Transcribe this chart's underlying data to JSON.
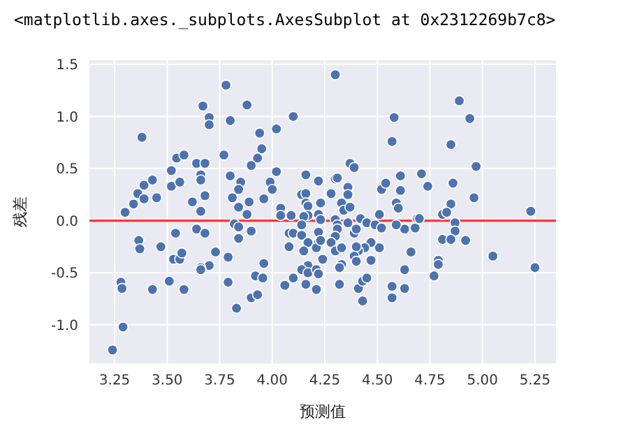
{
  "chart_data": {
    "type": "scatter",
    "xlabel": "预测值",
    "ylabel": "残差",
    "annotations": [
      "<matplotlib.axes._subplots.AxesSubplot at 0x2312269b7c8>"
    ],
    "xlim": [
      3.13,
      5.35
    ],
    "ylim": [
      -1.37,
      1.54
    ],
    "xticks": [
      {
        "value": 3.25,
        "label": "3.25"
      },
      {
        "value": 3.5,
        "label": "3.50"
      },
      {
        "value": 3.75,
        "label": "3.75"
      },
      {
        "value": 4.0,
        "label": "4.00"
      },
      {
        "value": 4.25,
        "label": "4.25"
      },
      {
        "value": 4.5,
        "label": "4.50"
      },
      {
        "value": 4.75,
        "label": "4.75"
      },
      {
        "value": 5.0,
        "label": "5.00"
      },
      {
        "value": 5.25,
        "label": "5.25"
      }
    ],
    "yticks": [
      {
        "value": -1.0,
        "label": "-1.0"
      },
      {
        "value": -0.5,
        "label": "-0.5"
      },
      {
        "value": 0.0,
        "label": "0.0"
      },
      {
        "value": 0.5,
        "label": "0.5"
      },
      {
        "value": 1.0,
        "label": "1.0"
      },
      {
        "value": 1.5,
        "label": "1.5"
      }
    ],
    "grid": true,
    "marker": "circle",
    "ref_lines": [
      {
        "axis": "y",
        "value": 0,
        "color": "#ff2a2a"
      }
    ],
    "series": [
      {
        "color": "#4c72b0",
        "x": [
          3.24,
          3.29,
          3.28,
          3.285,
          3.3,
          3.34,
          3.36,
          3.39,
          3.39,
          3.43,
          3.45,
          3.38,
          3.365,
          3.37,
          3.47,
          3.43,
          3.51,
          3.58,
          3.53,
          3.56,
          3.57,
          3.54,
          3.52,
          3.52,
          3.56,
          3.545,
          3.58,
          3.62,
          3.64,
          3.68,
          3.66,
          3.66,
          3.68,
          3.66,
          3.64,
          3.68,
          3.67,
          3.7,
          3.7,
          3.78,
          3.8,
          3.88,
          3.94,
          3.77,
          3.95,
          3.93,
          3.9,
          3.8,
          3.85,
          3.84,
          3.81,
          3.84,
          3.89,
          3.88,
          3.96,
          3.99,
          4.0,
          4.02,
          4.02,
          3.82,
          3.84,
          3.84,
          3.9,
          3.73,
          3.79,
          3.7,
          3.66,
          3.66,
          3.79,
          3.83,
          3.9,
          3.93,
          3.92,
          3.955,
          3.96,
          4.3,
          4.1,
          4.58,
          4.57,
          4.37,
          4.39,
          4.16,
          4.22,
          4.3,
          4.31,
          4.14,
          4.16,
          4.36,
          4.36,
          4.28,
          4.33,
          4.34,
          4.37,
          4.04,
          4.04,
          4.09,
          4.16,
          4.17,
          4.17,
          4.23,
          4.22,
          4.23,
          4.15,
          4.14,
          4.08,
          4.1,
          4.14,
          4.17,
          4.22,
          4.22,
          4.21,
          4.15,
          4.08,
          4.23,
          4.24,
          4.3,
          4.31,
          4.31,
          4.3,
          4.28,
          4.3,
          4.33,
          4.36,
          4.39,
          4.4,
          4.42,
          4.45,
          4.49,
          4.51,
          4.52,
          4.47,
          4.44,
          4.41,
          4.4,
          4.39,
          4.4,
          4.47,
          4.51,
          4.33,
          4.32,
          4.17,
          4.14,
          4.17,
          4.21,
          4.22,
          4.1,
          4.06,
          4.16,
          4.21,
          4.32,
          4.41,
          4.43,
          4.45,
          4.43,
          4.57,
          4.57,
          4.63,
          4.63,
          4.66,
          4.63,
          4.59,
          4.68,
          4.52,
          4.54,
          4.61,
          4.61,
          4.59,
          4.6,
          4.69,
          4.89,
          4.94,
          4.85,
          4.97,
          4.71,
          4.74,
          4.86,
          4.96,
          4.85,
          4.81,
          4.83,
          4.7,
          4.87,
          4.87,
          4.81,
          4.85,
          4.92,
          4.79,
          4.79,
          4.77,
          5.05,
          5.23,
          5.25
        ],
        "values": [
          -1.24,
          -1.02,
          -0.59,
          -0.65,
          0.08,
          0.16,
          0.26,
          0.34,
          0.21,
          0.39,
          0.22,
          0.8,
          -0.19,
          -0.27,
          -0.25,
          -0.66,
          -0.58,
          -0.66,
          -0.37,
          -0.37,
          -0.31,
          -0.12,
          0.33,
          0.48,
          0.37,
          0.6,
          0.63,
          0.18,
          0.55,
          0.55,
          0.44,
          0.39,
          0.24,
          0.09,
          -0.08,
          -0.12,
          1.1,
          0.99,
          0.92,
          1.3,
          0.96,
          1.11,
          0.84,
          0.63,
          0.69,
          0.6,
          0.53,
          0.43,
          0.37,
          0.3,
          0.22,
          0.13,
          0.18,
          0.06,
          0.21,
          0.37,
          0.3,
          0.88,
          0.47,
          -0.03,
          -0.06,
          -0.17,
          -0.1,
          -0.3,
          -0.35,
          -0.43,
          -0.45,
          -0.47,
          -0.59,
          -0.84,
          -0.74,
          -0.71,
          -0.53,
          -0.55,
          -0.41,
          1.4,
          1.0,
          0.99,
          0.76,
          0.55,
          0.51,
          0.44,
          0.38,
          0.4,
          0.41,
          0.25,
          0.26,
          0.32,
          0.25,
          0.26,
          0.17,
          0.1,
          0.13,
          0.12,
          0.05,
          0.05,
          0.17,
          0.14,
          0.05,
          0.17,
          0.06,
          0.01,
          0.04,
          -0.04,
          -0.12,
          -0.12,
          -0.14,
          -0.21,
          -0.21,
          -0.11,
          -0.26,
          -0.29,
          -0.25,
          -0.19,
          -0.37,
          0.01,
          -0.04,
          -0.08,
          -0.15,
          -0.21,
          -0.29,
          -0.26,
          -0.02,
          -0.12,
          -0.08,
          0.02,
          -0.02,
          -0.04,
          0.06,
          -0.07,
          -0.21,
          -0.26,
          -0.29,
          -0.25,
          -0.34,
          -0.39,
          -0.38,
          -0.26,
          -0.42,
          -0.45,
          -0.43,
          -0.47,
          -0.5,
          -0.47,
          -0.51,
          -0.55,
          -0.62,
          -0.61,
          -0.66,
          -0.61,
          -0.65,
          -0.58,
          -0.55,
          -0.77,
          -0.63,
          -0.74,
          -0.65,
          -0.47,
          -0.3,
          -0.08,
          -0.04,
          -0.07,
          0.3,
          0.36,
          0.43,
          0.29,
          0.17,
          0.12,
          0.02,
          1.15,
          0.98,
          0.73,
          0.52,
          0.45,
          0.33,
          0.36,
          0.22,
          0.16,
          0.06,
          0.08,
          0.02,
          -0.02,
          -0.1,
          -0.18,
          -0.18,
          -0.19,
          -0.38,
          -0.42,
          -0.53,
          -0.34,
          0.09,
          -0.45
        ]
      }
    ]
  }
}
